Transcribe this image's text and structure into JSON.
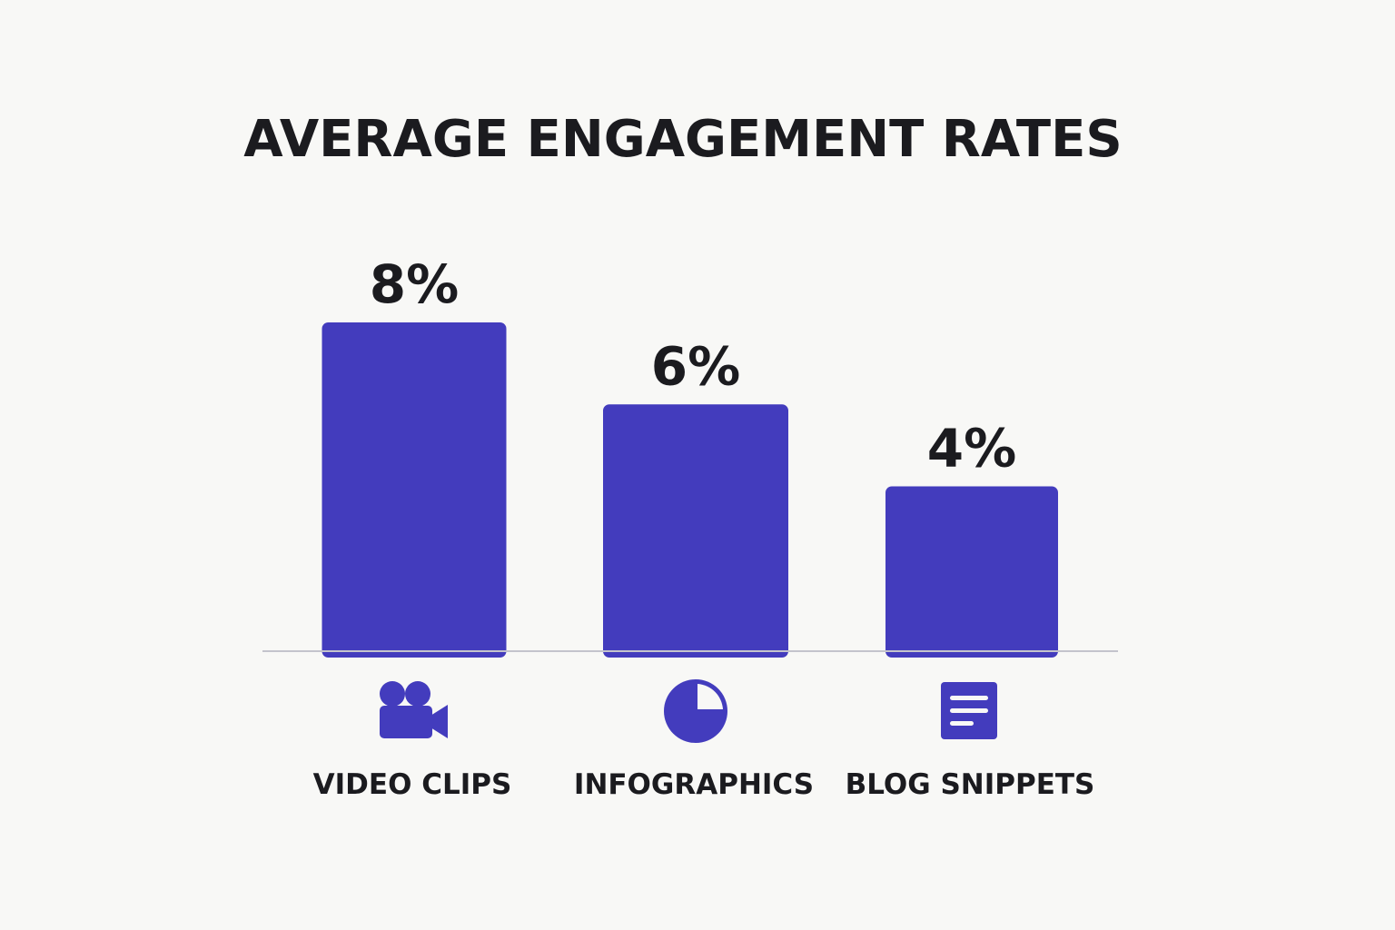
{
  "chart_data": {
    "type": "bar",
    "title": "AVERAGE ENGAGEMENT RATES",
    "categories": [
      "VIDEO CLIPS",
      "INFOGRAPHICS",
      "BLOG SNIPPETS"
    ],
    "values": [
      8,
      6,
      4
    ],
    "value_labels": [
      "8%",
      "6%",
      "4%"
    ],
    "icons": [
      "video-camera-icon",
      "pie-chart-icon",
      "document-icon"
    ],
    "unit": "%",
    "ylim": [
      0,
      8
    ],
    "grid": false,
    "legend": "none",
    "colors": {
      "bar": "#433cbd",
      "icon": "#433cbd",
      "text": "#1b1b1f",
      "axis": "#c4c4cc",
      "background": "#f8f8f6"
    }
  }
}
